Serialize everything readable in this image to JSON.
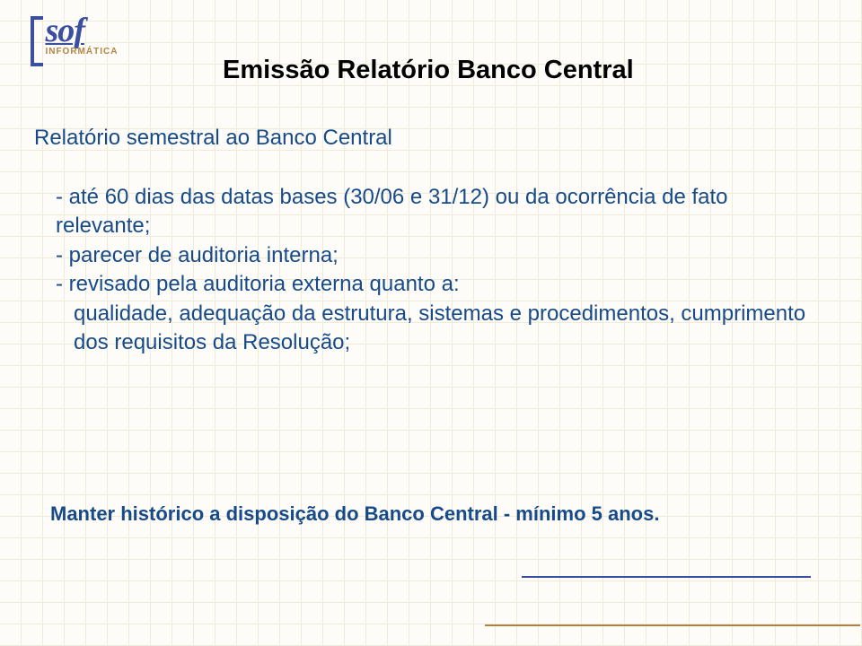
{
  "logo": {
    "main": "sof",
    "sub": "INFORMÁTICA"
  },
  "title": "Emissão Relatório Banco Central",
  "subtitle": "Relatório semestral ao Banco Central",
  "bullets": {
    "b1": "- até 60 dias das datas bases (30/06 e 31/12) ou da ocorrência de fato relevante;",
    "b2": "- parecer de auditoria interna;",
    "b3": "- revisado pela auditoria externa quanto a:",
    "b3_cont": "qualidade, adequação da estrutura, sistemas e procedimentos, cumprimento dos requisitos da Resolução;"
  },
  "footer": "Manter histórico a disposição do Banco Central - mínimo 5 anos.",
  "colors": {
    "brand_blue": "#3a4fa0",
    "brand_gold": "#b08544",
    "text_blue": "#174a88",
    "bg": "#fdfcf8",
    "grid": "#f0ead9"
  }
}
